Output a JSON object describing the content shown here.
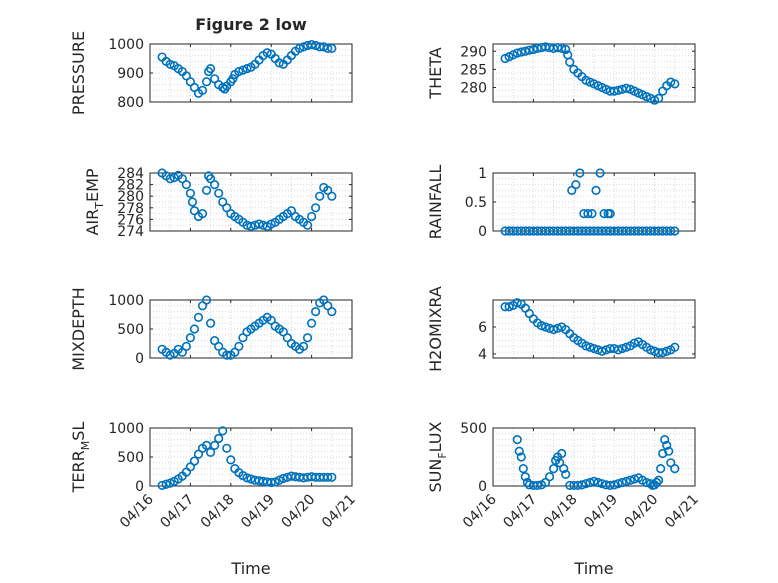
{
  "figure_title": "Figure 2 low",
  "colors": {
    "marker": "#0072BD",
    "grid": "#d9d9d9",
    "axes": "#262626"
  },
  "x_tick_labels": [
    "04/16",
    "04/17",
    "04/18",
    "04/19",
    "04/20",
    "04/21"
  ],
  "x_label_left": "Time",
  "x_label_right": "Time",
  "chart_data": [
    {
      "type": "scatter",
      "ylabel": "PRESSURE",
      "ylabel_sub": "",
      "ylabel_tail": "",
      "xlim": [
        0,
        5
      ],
      "ylim": [
        800,
        1000
      ],
      "yticks": [
        800,
        900,
        1000
      ],
      "ytick_labels": [
        "800",
        "900",
        "1000"
      ],
      "grid": true,
      "x": [
        0.3,
        0.4,
        0.5,
        0.6,
        0.7,
        0.8,
        0.9,
        1.0,
        1.1,
        1.2,
        1.3,
        1.4,
        1.45,
        1.5,
        1.6,
        1.7,
        1.8,
        1.85,
        1.9,
        2.0,
        2.05,
        2.1,
        2.2,
        2.3,
        2.4,
        2.5,
        2.6,
        2.7,
        2.8,
        2.9,
        3.0,
        3.1,
        3.2,
        3.3,
        3.4,
        3.5,
        3.6,
        3.7,
        3.8,
        3.9,
        4.0,
        4.1,
        4.2,
        4.3,
        4.4,
        4.5
      ],
      "y": [
        955,
        940,
        930,
        925,
        915,
        905,
        890,
        870,
        850,
        830,
        840,
        870,
        905,
        915,
        880,
        860,
        850,
        845,
        855,
        870,
        880,
        895,
        905,
        910,
        915,
        920,
        930,
        945,
        960,
        970,
        965,
        950,
        935,
        930,
        945,
        960,
        975,
        985,
        990,
        995,
        998,
        995,
        990,
        990,
        985,
        985
      ]
    },
    {
      "type": "scatter",
      "ylabel": "THETA",
      "ylabel_sub": "",
      "ylabel_tail": "",
      "xlim": [
        0,
        5
      ],
      "ylim": [
        276,
        292
      ],
      "yticks": [
        280,
        285,
        290
      ],
      "ytick_labels": [
        "280",
        "285",
        "290"
      ],
      "grid": true,
      "x": [
        0.3,
        0.4,
        0.5,
        0.6,
        0.7,
        0.8,
        0.9,
        1.0,
        1.1,
        1.2,
        1.3,
        1.4,
        1.5,
        1.6,
        1.7,
        1.8,
        1.85,
        1.9,
        2.0,
        2.1,
        2.2,
        2.3,
        2.4,
        2.5,
        2.6,
        2.7,
        2.8,
        2.9,
        3.0,
        3.1,
        3.2,
        3.3,
        3.4,
        3.5,
        3.6,
        3.7,
        3.8,
        3.9,
        4.0,
        4.1,
        4.2,
        4.3,
        4.4,
        4.5
      ],
      "y": [
        288,
        288.5,
        289,
        289.5,
        289.8,
        290,
        290.3,
        290.5,
        290.8,
        291,
        291.2,
        291,
        290.8,
        291,
        290.8,
        290.5,
        289,
        287,
        285,
        284,
        283,
        282,
        281.5,
        281,
        280.5,
        280,
        279.5,
        279,
        279,
        279.2,
        279.5,
        279.8,
        279.5,
        279,
        278.5,
        278,
        277.5,
        277,
        276.5,
        277,
        279,
        280.5,
        281.5,
        281
      ]
    },
    {
      "type": "scatter",
      "ylabel": "AIR",
      "ylabel_sub": "T",
      "ylabel_tail": "EMP",
      "xlim": [
        0,
        5
      ],
      "ylim": [
        274,
        284
      ],
      "yticks": [
        274,
        276,
        278,
        280,
        282,
        284
      ],
      "ytick_labels": [
        "274",
        "276",
        "278",
        "280",
        "282",
        "284"
      ],
      "grid": true,
      "x": [
        0.3,
        0.4,
        0.5,
        0.6,
        0.7,
        0.8,
        0.9,
        1.0,
        1.05,
        1.1,
        1.2,
        1.3,
        1.4,
        1.45,
        1.5,
        1.6,
        1.7,
        1.8,
        1.9,
        2.0,
        2.1,
        2.2,
        2.3,
        2.4,
        2.5,
        2.6,
        2.7,
        2.8,
        2.9,
        3.0,
        3.1,
        3.2,
        3.3,
        3.4,
        3.5,
        3.6,
        3.7,
        3.8,
        3.9,
        4.0,
        4.1,
        4.2,
        4.3,
        4.4,
        4.5
      ],
      "y": [
        284,
        283.5,
        283,
        283.2,
        283.6,
        283,
        282,
        280.5,
        279,
        277.5,
        276.5,
        277,
        281,
        283.5,
        283,
        282,
        280.5,
        279,
        278,
        277,
        276.5,
        276,
        275.5,
        275,
        274.8,
        275,
        275.2,
        275,
        274.8,
        275.2,
        275.5,
        276,
        276.5,
        277,
        277.5,
        276.5,
        276,
        275.5,
        275,
        276.5,
        278,
        280,
        281.5,
        281,
        280
      ]
    },
    {
      "type": "scatter",
      "ylabel": "RAINFALL",
      "ylabel_sub": "",
      "ylabel_tail": "",
      "xlim": [
        0,
        5
      ],
      "ylim": [
        0,
        1
      ],
      "yticks": [
        0,
        0.5,
        1
      ],
      "ytick_labels": [
        "0",
        "0.5",
        "1"
      ],
      "grid": true,
      "x": [
        0.3,
        0.4,
        0.5,
        0.6,
        0.7,
        0.8,
        0.9,
        1.0,
        1.1,
        1.2,
        1.3,
        1.4,
        1.5,
        1.6,
        1.7,
        1.8,
        1.9,
        2.0,
        2.1,
        2.2,
        2.3,
        2.4,
        2.5,
        2.6,
        2.7,
        2.8,
        2.9,
        3.0,
        3.1,
        3.2,
        3.3,
        3.4,
        3.5,
        3.6,
        3.7,
        3.8,
        3.9,
        4.0,
        4.1,
        4.2,
        4.3,
        4.4,
        4.5,
        1.95,
        2.05,
        2.15,
        2.25,
        2.35,
        2.45,
        2.55,
        2.65,
        2.75,
        2.85,
        2.9
      ],
      "y": [
        0,
        0,
        0,
        0,
        0,
        0,
        0,
        0,
        0,
        0,
        0,
        0,
        0,
        0,
        0,
        0,
        0,
        0,
        0,
        0,
        0,
        0,
        0,
        0,
        0,
        0,
        0,
        0,
        0,
        0,
        0,
        0,
        0,
        0,
        0,
        0,
        0,
        0,
        0,
        0,
        0,
        0,
        0,
        0.7,
        0.8,
        1.0,
        0.3,
        0.3,
        0.3,
        0.7,
        1.0,
        0.3,
        0.3,
        0.3
      ]
    },
    {
      "type": "scatter",
      "ylabel": "MIXDEPTH",
      "ylabel_sub": "",
      "ylabel_tail": "",
      "xlim": [
        0,
        5
      ],
      "ylim": [
        0,
        1000
      ],
      "yticks": [
        0,
        500,
        1000
      ],
      "ytick_labels": [
        "0",
        "500",
        "1000"
      ],
      "grid": true,
      "x": [
        0.3,
        0.4,
        0.5,
        0.6,
        0.7,
        0.8,
        0.9,
        1.0,
        1.1,
        1.2,
        1.3,
        1.4,
        1.5,
        1.6,
        1.7,
        1.8,
        1.9,
        2.0,
        2.1,
        2.2,
        2.3,
        2.4,
        2.5,
        2.6,
        2.7,
        2.8,
        2.9,
        3.0,
        3.1,
        3.2,
        3.3,
        3.4,
        3.5,
        3.6,
        3.7,
        3.8,
        3.9,
        4.0,
        4.1,
        4.2,
        4.3,
        4.4,
        4.5
      ],
      "y": [
        150,
        100,
        50,
        80,
        150,
        100,
        200,
        350,
        500,
        700,
        900,
        1000,
        600,
        300,
        200,
        100,
        50,
        50,
        100,
        200,
        350,
        450,
        500,
        550,
        600,
        650,
        700,
        650,
        550,
        500,
        450,
        350,
        250,
        200,
        150,
        200,
        350,
        600,
        800,
        950,
        1000,
        900,
        800
      ]
    },
    {
      "type": "scatter",
      "ylabel": "H2OMIXRA",
      "ylabel_sub": "",
      "ylabel_tail": "",
      "xlim": [
        0,
        5
      ],
      "ylim": [
        3.7,
        8
      ],
      "yticks": [
        4,
        6
      ],
      "ytick_labels": [
        "4",
        "6"
      ],
      "grid": true,
      "x": [
        0.3,
        0.4,
        0.5,
        0.6,
        0.7,
        0.8,
        0.9,
        1.0,
        1.1,
        1.2,
        1.3,
        1.4,
        1.5,
        1.6,
        1.7,
        1.8,
        1.9,
        2.0,
        2.1,
        2.2,
        2.3,
        2.4,
        2.5,
        2.6,
        2.7,
        2.8,
        2.9,
        3.0,
        3.1,
        3.2,
        3.3,
        3.4,
        3.5,
        3.6,
        3.7,
        3.8,
        3.9,
        4.0,
        4.1,
        4.2,
        4.3,
        4.4,
        4.5
      ],
      "y": [
        7.5,
        7.5,
        7.6,
        7.8,
        7.7,
        7.4,
        7.0,
        6.6,
        6.3,
        6.1,
        6.0,
        5.9,
        5.8,
        5.9,
        6.0,
        5.8,
        5.5,
        5.2,
        5.0,
        4.8,
        4.6,
        4.5,
        4.4,
        4.3,
        4.2,
        4.3,
        4.4,
        4.4,
        4.3,
        4.4,
        4.5,
        4.6,
        4.8,
        4.9,
        4.7,
        4.5,
        4.3,
        4.2,
        4.1,
        4.1,
        4.2,
        4.3,
        4.5
      ]
    },
    {
      "type": "scatter",
      "ylabel": "TERR",
      "ylabel_sub": "M",
      "ylabel_tail": "SL",
      "xlim": [
        0,
        5
      ],
      "ylim": [
        0,
        1000
      ],
      "yticks": [
        0,
        500,
        1000
      ],
      "ytick_labels": [
        "0",
        "500",
        "1000"
      ],
      "grid": true,
      "x": [
        0.3,
        0.4,
        0.5,
        0.6,
        0.7,
        0.8,
        0.9,
        1.0,
        1.1,
        1.2,
        1.3,
        1.4,
        1.5,
        1.6,
        1.7,
        1.8,
        1.9,
        2.0,
        2.1,
        2.2,
        2.3,
        2.4,
        2.5,
        2.6,
        2.7,
        2.8,
        2.9,
        3.0,
        3.1,
        3.2,
        3.3,
        3.4,
        3.5,
        3.6,
        3.7,
        3.8,
        3.9,
        4.0,
        4.1,
        4.2,
        4.3,
        4.4,
        4.5
      ],
      "y": [
        10,
        30,
        50,
        80,
        120,
        170,
        240,
        330,
        430,
        550,
        650,
        700,
        580,
        700,
        820,
        950,
        650,
        450,
        300,
        230,
        180,
        140,
        120,
        100,
        90,
        80,
        70,
        60,
        70,
        100,
        130,
        150,
        170,
        160,
        150,
        140,
        150,
        160,
        150,
        150,
        150,
        150,
        150
      ]
    },
    {
      "type": "scatter",
      "ylabel": "SUN",
      "ylabel_sub": "F",
      "ylabel_tail": "LUX",
      "xlim": [
        0,
        5
      ],
      "ylim": [
        0,
        500
      ],
      "yticks": [
        0,
        500
      ],
      "ytick_labels": [
        "0",
        "500"
      ],
      "grid": true,
      "x": [
        0.6,
        0.65,
        0.7,
        0.75,
        0.8,
        0.85,
        0.9,
        1.0,
        1.1,
        1.2,
        1.3,
        1.4,
        1.5,
        1.55,
        1.6,
        1.65,
        1.7,
        1.75,
        1.8,
        1.9,
        2.0,
        2.1,
        2.2,
        2.3,
        2.4,
        2.5,
        2.6,
        2.7,
        2.8,
        2.9,
        3.0,
        3.1,
        3.2,
        3.3,
        3.4,
        3.5,
        3.6,
        3.7,
        3.8,
        3.9,
        3.95,
        4.0,
        4.05,
        4.1,
        4.15,
        4.2,
        4.25,
        4.3,
        4.35,
        4.4,
        4.5
      ],
      "y": [
        400,
        300,
        250,
        150,
        80,
        30,
        10,
        5,
        5,
        10,
        30,
        80,
        150,
        220,
        250,
        200,
        280,
        150,
        100,
        5,
        5,
        5,
        10,
        20,
        30,
        40,
        30,
        20,
        10,
        5,
        10,
        20,
        30,
        40,
        50,
        60,
        70,
        50,
        30,
        20,
        5,
        10,
        30,
        50,
        150,
        280,
        400,
        350,
        300,
        200,
        150
      ]
    }
  ]
}
